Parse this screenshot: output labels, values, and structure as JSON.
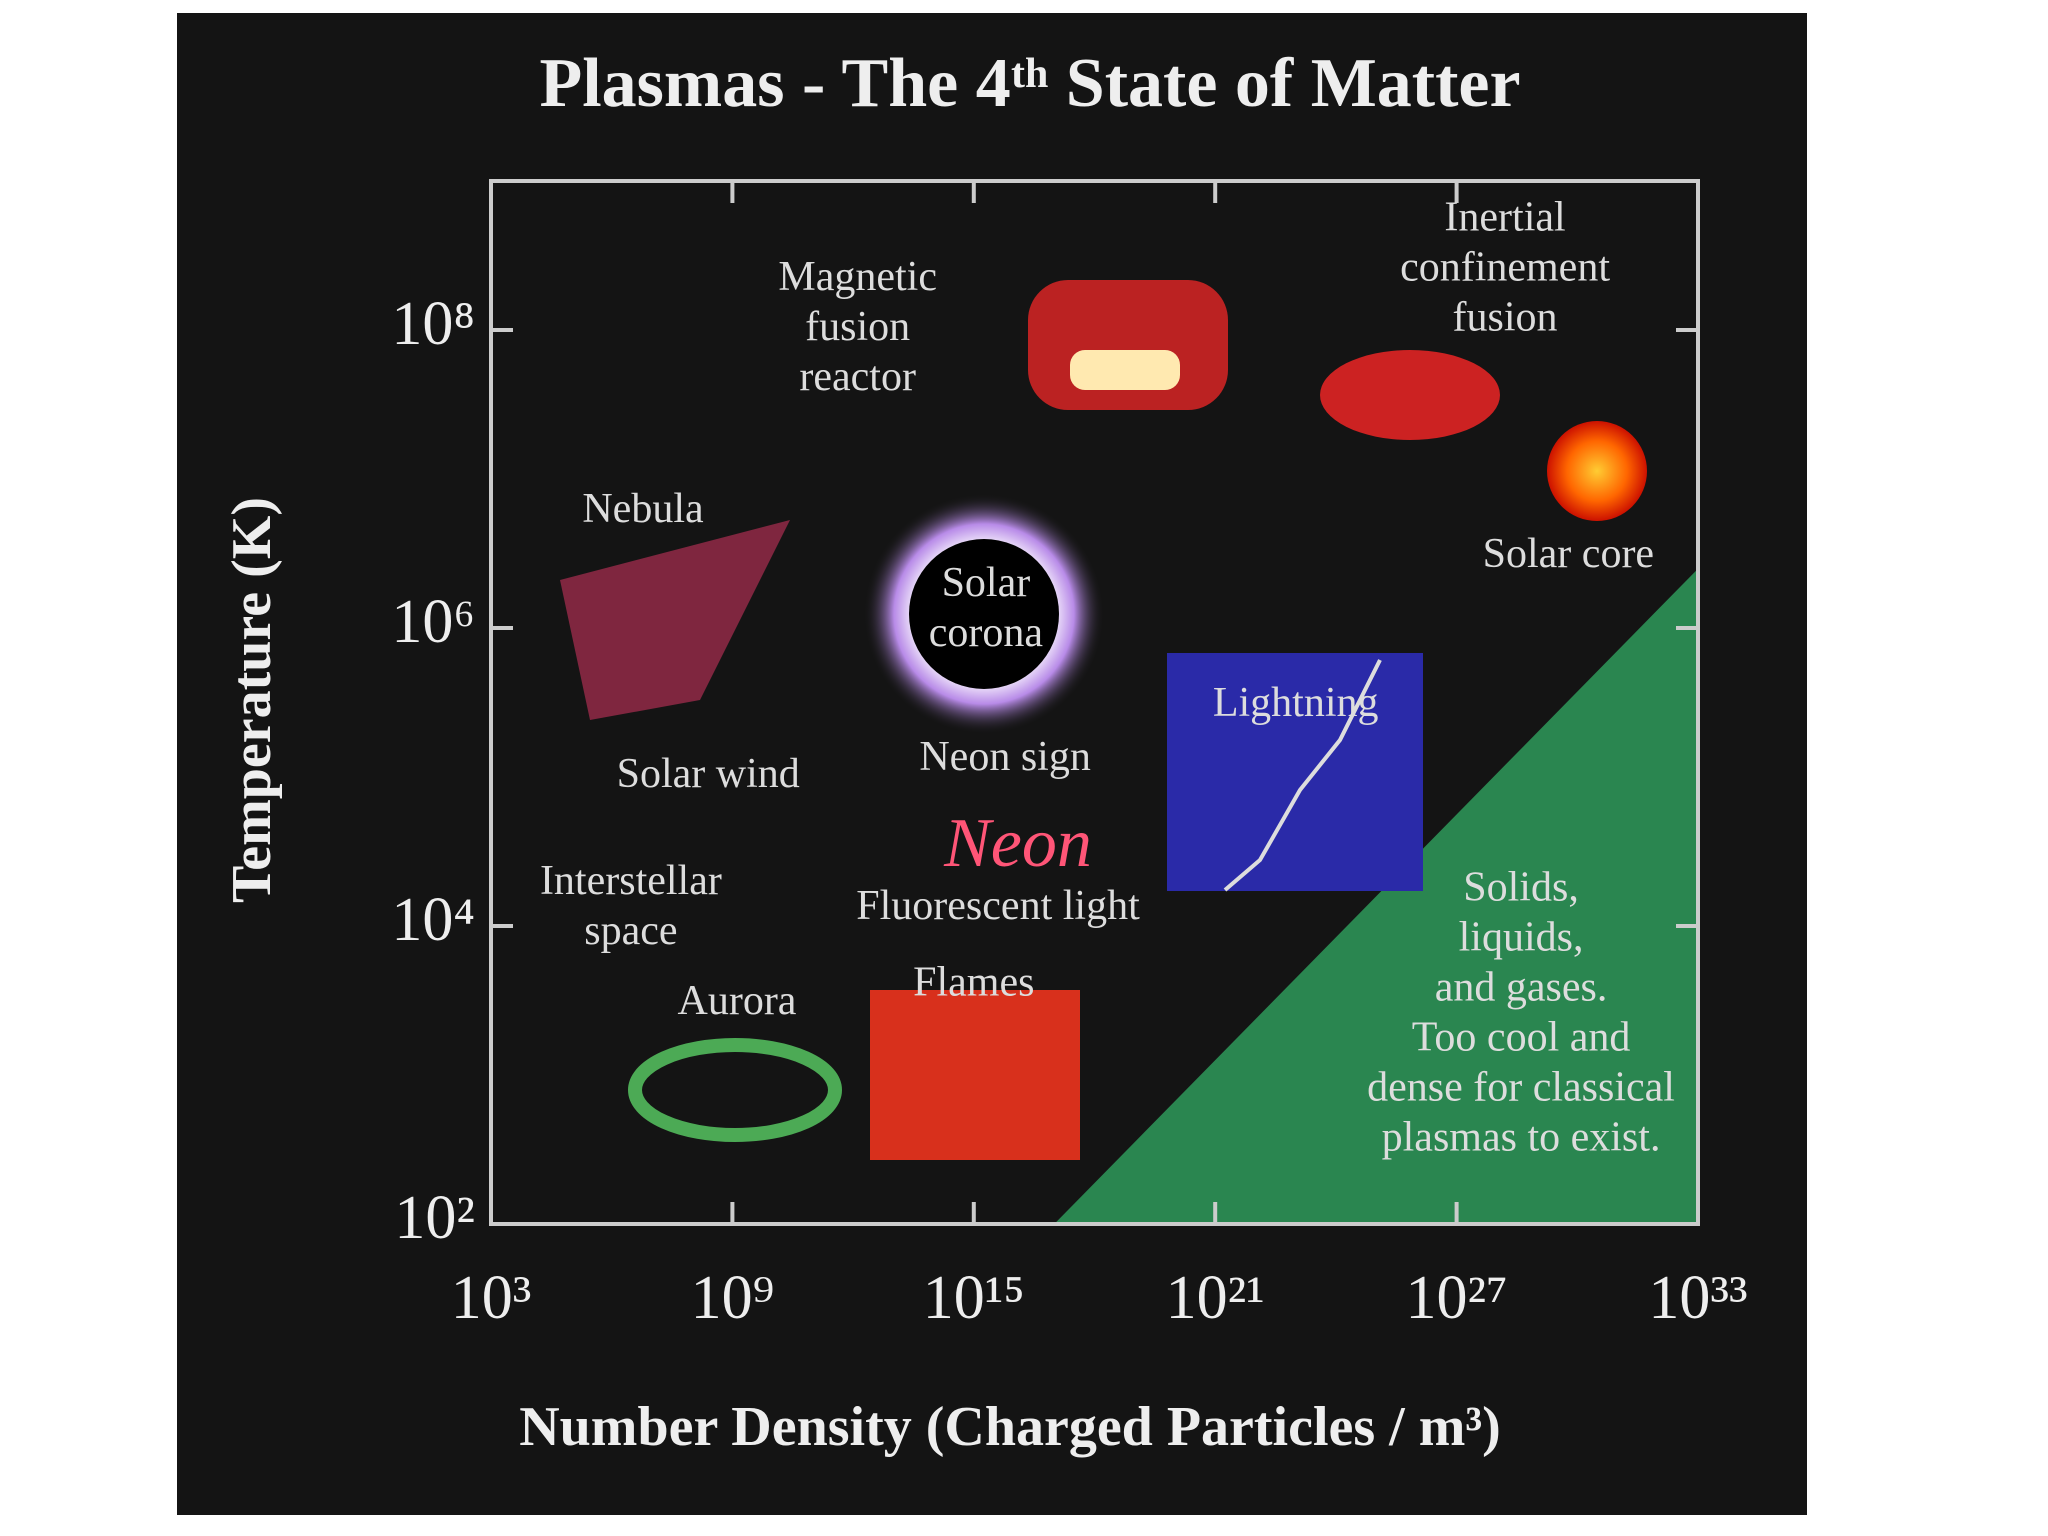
{
  "chart_data": {
    "type": "annotated-region-map",
    "title": "Plasmas - The 4ᵗʰ State of Matter",
    "x_label": "Number Density (Charged Particles / m³)",
    "y_label": "Temperature (K)",
    "log_x": true,
    "log_y": true,
    "xlim": [
      1000.0,
      1e+33
    ],
    "ylim": [
      100.0,
      1000000000.0
    ],
    "xticks": [
      {
        "value": 1000.0,
        "label": "10³"
      },
      {
        "value": 1000000000.0,
        "label": "10⁹"
      },
      {
        "value": 1000000000000000.0,
        "label": "10¹⁵"
      },
      {
        "value": 1e+21,
        "label": "10²¹"
      },
      {
        "value": 1e+27,
        "label": "10²⁷"
      },
      {
        "value": 1e+33,
        "label": "10³³"
      }
    ],
    "yticks": [
      {
        "value": 100.0,
        "label": "10²"
      },
      {
        "value": 10000.0,
        "label": "10⁴"
      },
      {
        "value": 1000000.0,
        "label": "10⁶"
      },
      {
        "value": 100000000.0,
        "label": "10⁸"
      }
    ],
    "region": {
      "color": "#2e9a5a",
      "x": [
        1e+17,
        1e+33,
        1e+33
      ],
      "y": [
        100.0,
        2500000.0,
        100.0
      ]
    },
    "annotations": [
      {
        "lines": [
          "Magnetic",
          "fusion",
          "reactor"
        ],
        "x": 1300000000000.0,
        "y": 100000000.0
      },
      {
        "lines": [
          "Inertial",
          "confinement",
          "fusion"
        ],
        "x": 1.6e+28,
        "y": 250000000.0
      },
      {
        "lines": [
          "Nebula"
        ],
        "x": 6000000.0,
        "y": 6000000.0
      },
      {
        "lines": [
          "Solar",
          "corona"
        ],
        "x": 2000000000000000.0,
        "y": 1300000.0
      },
      {
        "lines": [
          "Solar core"
        ],
        "x": 6e+29,
        "y": 3000000.0
      },
      {
        "lines": [
          "Lightning"
        ],
        "x": 1e+23,
        "y": 300000.0
      },
      {
        "lines": [
          "Solar wind"
        ],
        "x": 250000000.0,
        "y": 100000.0
      },
      {
        "lines": [
          "Neon sign"
        ],
        "x": 6000000000000000.0,
        "y": 130000.0
      },
      {
        "lines": [
          "Interstellar",
          "space"
        ],
        "x": 3000000.0,
        "y": 13000.0
      },
      {
        "lines": [
          "Fluorescent light"
        ],
        "x": 4000000000000000.0,
        "y": 13000.0
      },
      {
        "lines": [
          "Aurora"
        ],
        "x": 1300000000.0,
        "y": 3000.0
      },
      {
        "lines": [
          "Flames"
        ],
        "x": 1000000000000000.0,
        "y": 4000.0
      },
      {
        "lines": [
          "Solids,",
          "liquids,",
          "and gases.",
          "Too cool and",
          "dense for classical",
          "plasmas to exist."
        ],
        "x": 4e+28,
        "y": 2500.0
      }
    ]
  }
}
